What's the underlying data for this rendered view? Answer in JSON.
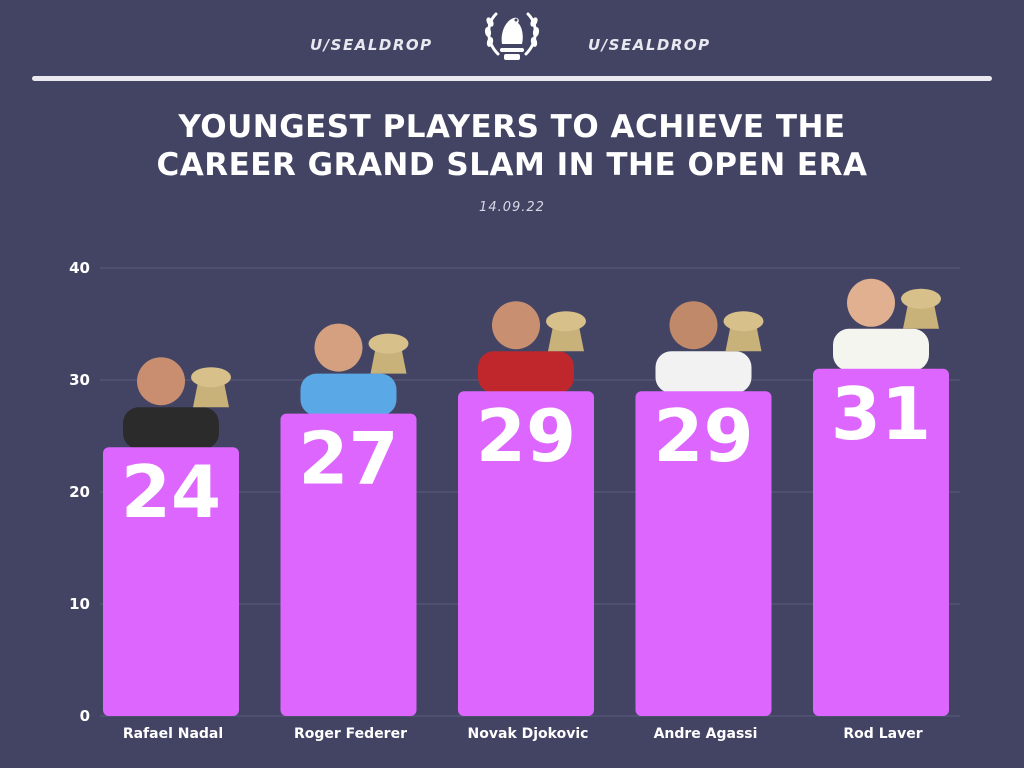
{
  "header": {
    "brand_left": "U/SEALDROP",
    "brand_right": "U/SEALDROP",
    "logo_icon": "seal-laurel-trophy-icon"
  },
  "colors": {
    "background": "#434464",
    "bar": "#dd66ff",
    "gridline": "#5b5c7a",
    "text": "#ffffff"
  },
  "chart_data": {
    "type": "bar",
    "title": "YOUNGEST PLAYERS TO ACHIEVE THE CAREER GRAND SLAM IN THE OPEN ERA",
    "title_lines": [
      "YOUNGEST PLAYERS TO ACHIEVE THE",
      "CAREER GRAND SLAM IN THE OPEN ERA"
    ],
    "subtitle": "14.09.22",
    "categories": [
      "Rafael Nadal",
      "Roger Federer",
      "Novak Djokovic",
      "Andre Agassi",
      "Rod Laver"
    ],
    "values": [
      24,
      27,
      29,
      29,
      31
    ],
    "value_labels": [
      "24",
      "27",
      "29",
      "29",
      "31"
    ],
    "yticks": [
      0,
      10,
      20,
      30,
      40
    ],
    "ylim": [
      0,
      40
    ],
    "xlabel": "",
    "ylabel": "",
    "grid": true,
    "legend": "none",
    "photos": [
      "Rafael Nadal with trophies",
      "Roger Federer with trophy",
      "Novak Djokovic with trophy",
      "Andre Agassi with trophies",
      "Rod Laver with trophy"
    ]
  }
}
